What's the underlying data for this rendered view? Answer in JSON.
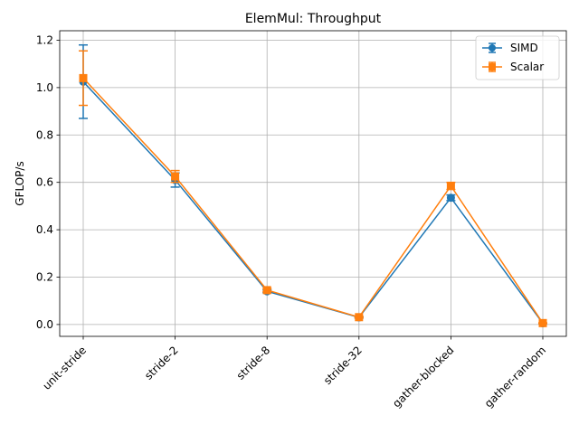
{
  "chart_data": {
    "type": "line",
    "title": "ElemMul: Throughput",
    "xlabel": "",
    "ylabel": "GFLOP/s",
    "categories": [
      "unit-stride",
      "stride-2",
      "stride-8",
      "stride-32",
      "gather-blocked",
      "gather-random"
    ],
    "ylim": [
      -0.05,
      1.24
    ],
    "yticks": [
      0.0,
      0.2,
      0.4,
      0.6,
      0.8,
      1.0,
      1.2
    ],
    "ytick_labels": [
      "0.0",
      "0.2",
      "0.4",
      "0.6",
      "0.8",
      "1.0",
      "1.2"
    ],
    "grid": true,
    "legend_position": "top-right",
    "series": [
      {
        "name": "SIMD",
        "marker": "circle",
        "color": "#1f77b4",
        "values": [
          1.025,
          0.61,
          0.14,
          0.03,
          0.535,
          0.005
        ],
        "errors": [
          0.155,
          0.03,
          0.006,
          0.003,
          0.012,
          0.001
        ]
      },
      {
        "name": "Scalar",
        "marker": "square",
        "color": "#ff7f0e",
        "values": [
          1.04,
          0.625,
          0.145,
          0.031,
          0.585,
          0.006
        ],
        "errors": [
          0.115,
          0.025,
          0.007,
          0.003,
          0.015,
          0.001
        ]
      }
    ]
  }
}
